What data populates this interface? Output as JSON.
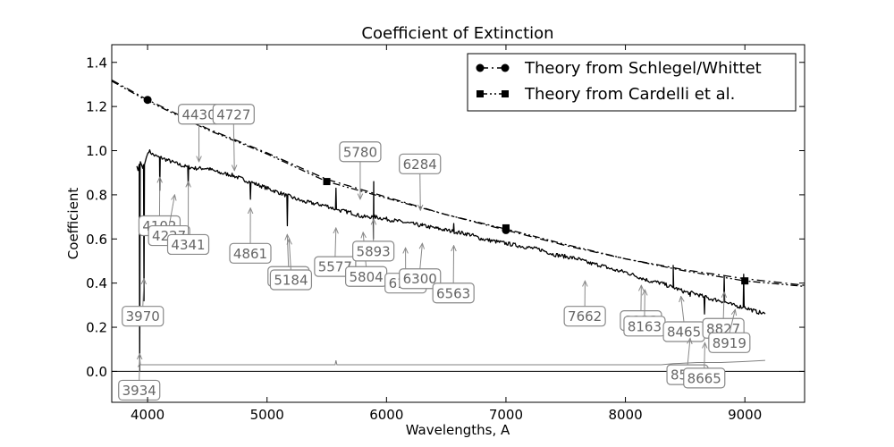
{
  "chart_data": {
    "type": "line",
    "title": "Coefficient of Extinction",
    "xlabel": "Wavelengths, A",
    "ylabel": "Coefficient",
    "xlim": [
      3700,
      9500
    ],
    "ylim": [
      -0.14,
      1.48
    ],
    "xticks": [
      4000,
      5000,
      6000,
      7000,
      8000,
      9000
    ],
    "xtick_labels": [
      "4000",
      "5000",
      "6000",
      "7000",
      "8000",
      "9000"
    ],
    "yticks": [
      0.0,
      0.2,
      0.4,
      0.6,
      0.8,
      1.0,
      1.2,
      1.4
    ],
    "ytick_labels": [
      "0.0",
      "0.2",
      "0.4",
      "0.6",
      "0.8",
      "1.0",
      "1.2",
      "1.4"
    ],
    "legend_position": "top-right",
    "series": [
      {
        "name": "Theory from Schlegel/Whittet",
        "style": "dash-dot",
        "marker": "circle",
        "color": "#000000",
        "x": [
          3700,
          4000,
          4500,
          5000,
          5500,
          6000,
          6500,
          7000,
          7500,
          8000,
          8500,
          9000,
          9500
        ],
        "y": [
          1.32,
          1.23,
          1.1,
          0.99,
          0.87,
          0.79,
          0.71,
          0.64,
          0.57,
          0.51,
          0.46,
          0.42,
          0.39
        ],
        "marker_x": [
          4000,
          7000
        ],
        "marker_y": [
          1.23,
          0.64
        ]
      },
      {
        "name": "Theory from Cardelli et al.",
        "style": "dash-dot-dot",
        "marker": "square",
        "color": "#000000",
        "x": [
          3700,
          4000,
          4500,
          5000,
          5500,
          6000,
          6500,
          7000,
          7500,
          8000,
          8500,
          9000,
          9500
        ],
        "y": [
          1.315,
          1.225,
          1.095,
          0.985,
          0.86,
          0.785,
          0.71,
          0.645,
          0.575,
          0.51,
          0.455,
          0.41,
          0.385
        ],
        "marker_x": [
          5500,
          7000,
          9000
        ],
        "marker_y": [
          0.86,
          0.65,
          0.41
        ]
      },
      {
        "name": "",
        "style": "solid",
        "color": "#000000",
        "x": [
          3910,
          3920,
          3940,
          3960,
          3990,
          4010,
          4050,
          4100,
          4200,
          4300,
          4400,
          4500,
          4600,
          4700,
          4800,
          4900,
          5000,
          5100,
          5200,
          5300,
          5400,
          5500,
          5600,
          5700,
          5800,
          5900,
          6000,
          6100,
          6200,
          6300,
          6400,
          6500,
          6600,
          6700,
          6800,
          6900,
          7000,
          7100,
          7200,
          7300,
          7400,
          7500,
          7600,
          7700,
          7800,
          7900,
          8000,
          8100,
          8200,
          8300,
          8400,
          8500,
          8600,
          8700,
          8800,
          8900,
          9000,
          9100,
          9170
        ],
        "y": [
          0.93,
          0.91,
          0.95,
          0.92,
          0.97,
          1.0,
          0.98,
          0.97,
          0.95,
          0.93,
          0.92,
          0.92,
          0.9,
          0.89,
          0.87,
          0.85,
          0.83,
          0.81,
          0.79,
          0.77,
          0.76,
          0.75,
          0.73,
          0.72,
          0.7,
          0.7,
          0.69,
          0.68,
          0.67,
          0.66,
          0.65,
          0.64,
          0.63,
          0.62,
          0.6,
          0.59,
          0.58,
          0.57,
          0.56,
          0.55,
          0.53,
          0.52,
          0.51,
          0.49,
          0.48,
          0.46,
          0.45,
          0.43,
          0.41,
          0.4,
          0.38,
          0.36,
          0.35,
          0.33,
          0.32,
          0.3,
          0.29,
          0.27,
          0.26
        ],
        "dips": [
          {
            "x": 3934,
            "y": 0.0
          },
          {
            "x": 3970,
            "y": 0.32
          },
          {
            "x": 4102,
            "y": 0.82
          },
          {
            "x": 4340,
            "y": 0.84
          },
          {
            "x": 4861,
            "y": 0.78
          },
          {
            "x": 5170,
            "y": 0.66
          },
          {
            "x": 5890,
            "y": 0.6
          },
          {
            "x": 8542,
            "y": 0.34
          },
          {
            "x": 8662,
            "y": 0.26
          }
        ],
        "spikes": [
          {
            "x": 5577,
            "y": 0.83
          },
          {
            "x": 5893,
            "y": 0.86
          },
          {
            "x": 6300,
            "y": 0.67
          },
          {
            "x": 6563,
            "y": 0.67
          },
          {
            "x": 8400,
            "y": 0.48
          },
          {
            "x": 8827,
            "y": 0.43
          },
          {
            "x": 8990,
            "y": 0.44
          }
        ]
      },
      {
        "name": "",
        "style": "solid",
        "color": "#808080",
        "x": [
          3920,
          3930,
          3934,
          3940,
          3960,
          4000,
          5000,
          5570,
          5577,
          5585,
          6000,
          7000,
          8000,
          8300,
          8400,
          8600,
          8800,
          9000,
          9170
        ],
        "y": [
          0.02,
          0.03,
          0.06,
          0.03,
          0.03,
          0.03,
          0.03,
          0.03,
          0.05,
          0.03,
          0.03,
          0.03,
          0.03,
          0.03,
          0.035,
          0.04,
          0.04,
          0.045,
          0.05
        ]
      }
    ],
    "annotations": [
      {
        "text": "3934",
        "x": 3934,
        "y": 0.08,
        "tx": 3930,
        "ty": -0.085
      },
      {
        "text": "3970",
        "x": 3970,
        "y": 0.42,
        "tx": 3960,
        "ty": 0.25
      },
      {
        "text": "4102",
        "x": 4102,
        "y": 0.88,
        "tx": 4100,
        "ty": 0.66
      },
      {
        "text": "4227",
        "x": 4227,
        "y": 0.8,
        "tx": 4180,
        "ty": 0.615
      },
      {
        "text": "4341",
        "x": 4341,
        "y": 0.86,
        "tx": 4340,
        "ty": 0.575
      },
      {
        "text": "4430",
        "x": 4430,
        "y": 0.95,
        "tx": 4430,
        "ty": 1.165
      },
      {
        "text": "4727",
        "x": 4727,
        "y": 0.91,
        "tx": 4720,
        "ty": 1.165
      },
      {
        "text": "4861",
        "x": 4861,
        "y": 0.74,
        "tx": 4860,
        "ty": 0.535
      },
      {
        "text": "5169",
        "x": 5169,
        "y": 0.62,
        "tx": 5180,
        "ty": 0.43
      },
      {
        "text": "5184",
        "x": 5184,
        "y": 0.6,
        "tx": 5200,
        "ty": 0.415
      },
      {
        "text": "5577",
        "x": 5577,
        "y": 0.65,
        "tx": 5570,
        "ty": 0.475
      },
      {
        "text": "5780",
        "x": 5780,
        "y": 0.78,
        "tx": 5780,
        "ty": 0.995
      },
      {
        "text": "5804",
        "x": 5804,
        "y": 0.63,
        "tx": 5830,
        "ty": 0.43
      },
      {
        "text": "5893",
        "x": 5893,
        "y": 0.69,
        "tx": 5890,
        "ty": 0.545
      },
      {
        "text": "6159",
        "x": 6159,
        "y": 0.56,
        "tx": 6160,
        "ty": 0.4
      },
      {
        "text": "6284",
        "x": 6284,
        "y": 0.73,
        "tx": 6280,
        "ty": 0.94
      },
      {
        "text": "6300",
        "x": 6300,
        "y": 0.58,
        "tx": 6280,
        "ty": 0.42
      },
      {
        "text": "6563",
        "x": 6563,
        "y": 0.57,
        "tx": 6560,
        "ty": 0.355
      },
      {
        "text": "7662",
        "x": 7662,
        "y": 0.41,
        "tx": 7660,
        "ty": 0.25
      },
      {
        "text": "8133",
        "x": 8133,
        "y": 0.39,
        "tx": 8130,
        "ty": 0.23
      },
      {
        "text": "8163",
        "x": 8163,
        "y": 0.37,
        "tx": 8160,
        "ty": 0.205
      },
      {
        "text": "8465",
        "x": 8465,
        "y": 0.34,
        "tx": 8490,
        "ty": 0.18
      },
      {
        "text": "8542",
        "x": 8542,
        "y": 0.15,
        "tx": 8520,
        "ty": -0.015
      },
      {
        "text": "8665",
        "x": 8665,
        "y": 0.13,
        "tx": 8660,
        "ty": -0.03
      },
      {
        "text": "8827",
        "x": 8827,
        "y": 0.36,
        "tx": 8820,
        "ty": 0.195
      },
      {
        "text": "8919",
        "x": 8919,
        "y": 0.28,
        "tx": 8870,
        "ty": 0.13
      }
    ]
  }
}
